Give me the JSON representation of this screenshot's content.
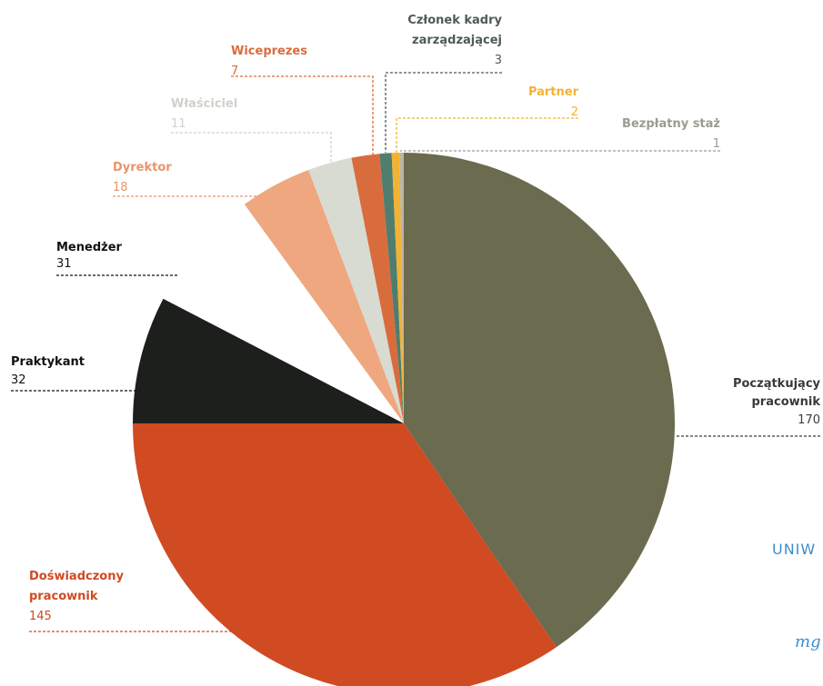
{
  "chart_data": {
    "type": "pie",
    "slices": [
      {
        "label": "Początkujący pracownik",
        "value": 170,
        "color": "#6b6b4f"
      },
      {
        "label": "Doświadczony pracownik",
        "value": 145,
        "color": "#d04a22"
      },
      {
        "label": "Praktykant",
        "value": 32,
        "color": "#1d1f1c"
      },
      {
        "label": "Menedżer",
        "value": 31,
        "color": "#ffffff"
      },
      {
        "label": "Dyrektor",
        "value": 18,
        "color": "#eea77f"
      },
      {
        "label": "Właściciel",
        "value": 11,
        "color": "#d8dbd2"
      },
      {
        "label": "Wiceprezes",
        "value": 7,
        "color": "#d96c3c"
      },
      {
        "label": "Członek kadry zarządzającej",
        "value": 3,
        "color": "#4f7d6e"
      },
      {
        "label": "Partner",
        "value": 2,
        "color": "#f2b233"
      },
      {
        "label": "Bezpłatny staż",
        "value": 1,
        "color": "#b9b5a8"
      }
    ]
  },
  "labels": [
    {
      "lines": [
        "Początkujący",
        "pracownik"
      ],
      "value": "170",
      "color": "#3a3a3a"
    },
    {
      "lines": [
        "Doświadczony",
        "pracownik"
      ],
      "value": "145",
      "color": "#d04a22"
    },
    {
      "lines": [
        "Praktykant"
      ],
      "value": "32",
      "color": "#111111"
    },
    {
      "lines": [
        "Menedżer"
      ],
      "value": "31",
      "color": "#111111"
    },
    {
      "lines": [
        "Dyrektor"
      ],
      "value": "18",
      "color": "#e8956a"
    },
    {
      "lines": [
        "Właściciel"
      ],
      "value": "11",
      "color": "#cfd2cb"
    },
    {
      "lines": [
        "Wiceprezes"
      ],
      "value": "7",
      "color": "#d96c3c"
    },
    {
      "lines": [
        "Członek kadry",
        "zarządzającej"
      ],
      "value": "3",
      "color": "#4f5a55"
    },
    {
      "lines": [
        "Partner"
      ],
      "value": "2",
      "color": "#f2b233"
    },
    {
      "lines": [
        "Bezpłatny staż"
      ],
      "value": "1",
      "color": "#9c9a92"
    }
  ],
  "watermark": {
    "line1": "UNIW",
    "line2": "mg"
  }
}
